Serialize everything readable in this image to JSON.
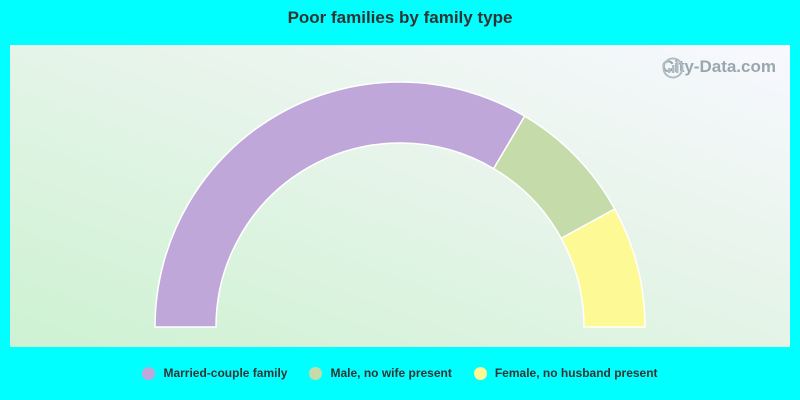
{
  "title": "Poor families by family type",
  "watermark": "City-Data.com",
  "chart_data": {
    "type": "pie",
    "subtype": "half-donut",
    "title": "Poor families by family type",
    "categories": [
      "Married-couple family",
      "Male, no wife present",
      "Female, no husband present"
    ],
    "values": [
      67,
      17,
      16
    ],
    "unit": "%",
    "colors": [
      "#bfa8d9",
      "#c5dba9",
      "#fdf994"
    ],
    "legend_position": "bottom"
  }
}
